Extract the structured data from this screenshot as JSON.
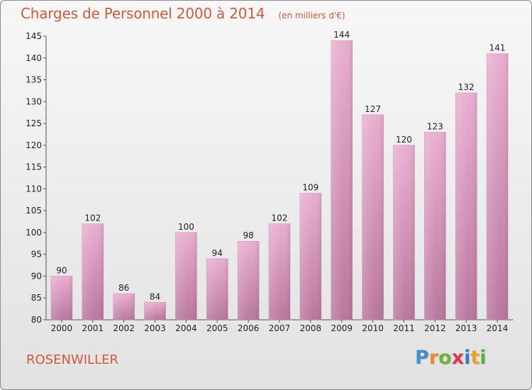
{
  "chart_data": {
    "type": "bar",
    "title": "Charges de Personnel 2000 à 2014",
    "subtitle": "(en milliers d'€)",
    "categories": [
      "2000",
      "2001",
      "2002",
      "2003",
      "2004",
      "2005",
      "2006",
      "2007",
      "2008",
      "2009",
      "2010",
      "2011",
      "2012",
      "2013",
      "2014"
    ],
    "values": [
      90,
      102,
      86,
      84,
      100,
      94,
      98,
      102,
      109,
      144,
      127,
      120,
      123,
      132,
      141
    ],
    "ylim": [
      80,
      145
    ],
    "yticks": [
      80,
      85,
      90,
      95,
      100,
      105,
      110,
      115,
      120,
      125,
      130,
      135,
      140,
      145
    ],
    "xlabel": "",
    "ylabel": "",
    "grid": false,
    "bar_color": "#d98fba",
    "bar_color_light": "#eaaed0",
    "bar_color_dark": "#b9779e"
  },
  "commune": "ROSENWILLER",
  "logo": {
    "letters": [
      "P",
      "r",
      "o",
      "x",
      "i",
      "t",
      "i"
    ],
    "colors": [
      "#3f8fd1",
      "#f08a24",
      "#6bb33a",
      "#e0364d",
      "#2f7fcf",
      "#f0a020",
      "#58b044"
    ]
  },
  "colors": {
    "title": "#d15a3c",
    "axis": "#555555"
  }
}
